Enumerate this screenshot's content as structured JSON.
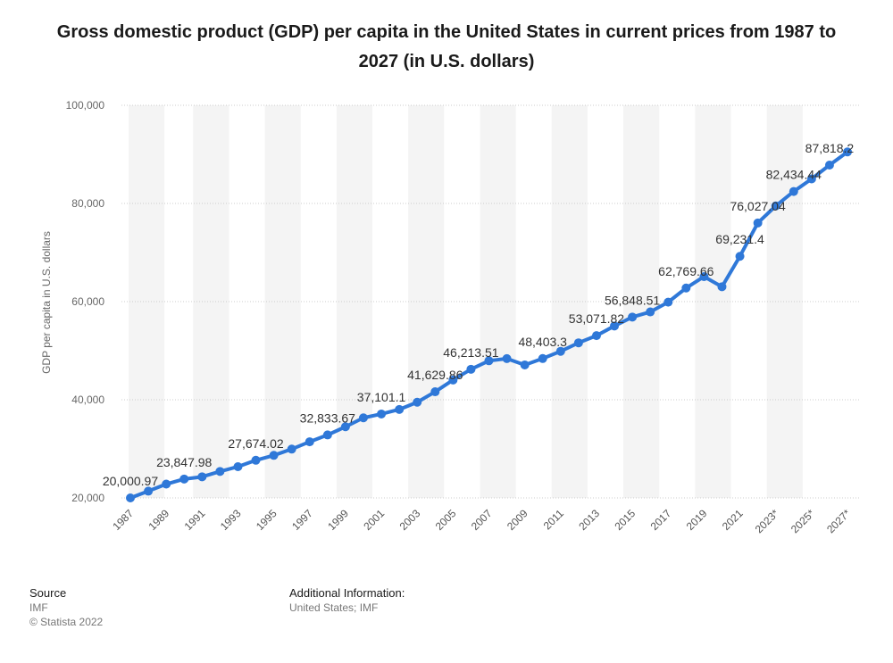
{
  "title": "Gross domestic product (GDP) per capita in the United States in current prices from 1987 to 2027 (in U.S. dollars)",
  "footer": {
    "source_heading": "Source",
    "source_name": "IMF",
    "copyright": "© Statista 2022",
    "info_heading": "Additional Information:",
    "info_text": "United States; IMF"
  },
  "colors": {
    "line": "#2f78d8",
    "band": "#f4f4f4",
    "grid": "#cccccc"
  },
  "chart_data": {
    "type": "line",
    "title": "Gross domestic product (GDP) per capita in the United States in current prices from 1987 to 2027 (in U.S. dollars)",
    "xlabel": "",
    "ylabel": "GDP per capita in U.S. dollars",
    "ylim": [
      20000,
      100000
    ],
    "yticks": [
      20000,
      40000,
      60000,
      80000,
      100000
    ],
    "ytick_labels": [
      "20,000",
      "40,000",
      "60,000",
      "80,000",
      "100,000"
    ],
    "grid": true,
    "categories": [
      "1987",
      "1988",
      "1989",
      "1990",
      "1991",
      "1992",
      "1993",
      "1994",
      "1995",
      "1996",
      "1997",
      "1998",
      "1999",
      "2000",
      "2001",
      "2002",
      "2003",
      "2004",
      "2005",
      "2006",
      "2007",
      "2008",
      "2009",
      "2010",
      "2011",
      "2012",
      "2013",
      "2014",
      "2015",
      "2016",
      "2017",
      "2018",
      "2019",
      "2020",
      "2021",
      "2022",
      "2023*",
      "2024*",
      "2025*",
      "2026*",
      "2027*"
    ],
    "xtick_labels": [
      "1987",
      "1989",
      "1991",
      "1993",
      "1995",
      "1997",
      "1999",
      "2001",
      "2003",
      "2005",
      "2007",
      "2009",
      "2011",
      "2013",
      "2015",
      "2017",
      "2019",
      "2021",
      "2023*",
      "2025*",
      "2027*"
    ],
    "values": [
      20000.97,
      21376,
      22814,
      23847.98,
      24303,
      25393,
      26365,
      27674.02,
      28671,
      29947,
      31440,
      32833.67,
      34496,
      36318,
      37101.1,
      38023,
      39496,
      41629.86,
      44034,
      46213.51,
      47944,
      48383,
      47100,
      48403.3,
      49874,
      51602,
      53071.82,
      55033,
      56848.51,
      57904,
      59885,
      62769.66,
      65095,
      63028,
      69231.4,
      76027.04,
      79500,
      82434.44,
      85000,
      87818.2,
      90500
    ],
    "data_labels": [
      {
        "index": 0,
        "text": "20,000.97"
      },
      {
        "index": 3,
        "text": "23,847.98"
      },
      {
        "index": 7,
        "text": "27,674.02"
      },
      {
        "index": 11,
        "text": "32,833.67"
      },
      {
        "index": 14,
        "text": "37,101.1"
      },
      {
        "index": 17,
        "text": "41,629.86"
      },
      {
        "index": 19,
        "text": "46,213.51"
      },
      {
        "index": 23,
        "text": "48,403.3"
      },
      {
        "index": 26,
        "text": "53,071.82"
      },
      {
        "index": 28,
        "text": "56,848.51"
      },
      {
        "index": 31,
        "text": "62,769.66"
      },
      {
        "index": 34,
        "text": "69,231.4"
      },
      {
        "index": 35,
        "text": "76,027.04"
      },
      {
        "index": 37,
        "text": "82,434.44"
      },
      {
        "index": 39,
        "text": "87,818.2"
      }
    ]
  }
}
